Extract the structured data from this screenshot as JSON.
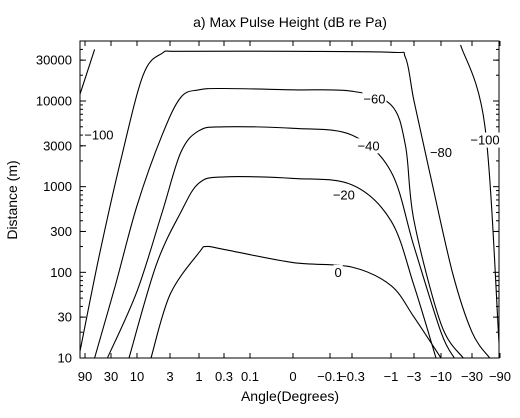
{
  "chart_data": {
    "type": "contour",
    "title": "a) Max Pulse Height (dB re Pa)",
    "xlabel": "Angle(Degrees)",
    "ylabel": "Distance (m)",
    "x_ticks": [
      "90",
      "30",
      "10",
      "3",
      "1",
      "0.3",
      "0.1",
      "0",
      "−0.1",
      "−0.3",
      "−1",
      "−3",
      "−10",
      "−30",
      "−90"
    ],
    "y_scale": "log",
    "ylim": [
      10,
      45000
    ],
    "y_ticks": [
      10,
      30,
      100,
      300,
      1000,
      3000,
      10000,
      30000
    ],
    "y_tick_labels": [
      "10",
      "30",
      "100",
      "300",
      "1000",
      "3000",
      "10000",
      "30000"
    ],
    "contours": [
      {
        "level": 0,
        "label": "0",
        "label_point": [
          -0.15,
          100
        ],
        "points": [
          [
            6,
            10
          ],
          [
            3,
            55
          ],
          [
            1,
            170
          ],
          [
            0.7,
            200
          ],
          [
            0.3,
            185
          ],
          [
            0,
            130
          ],
          [
            -0.3,
            115
          ],
          [
            -1,
            70
          ],
          [
            -3,
            30
          ],
          [
            -10,
            10
          ]
        ]
      },
      {
        "level": -20,
        "label": "−20",
        "label_point": [
          -0.2,
          800
        ],
        "points": [
          [
            14,
            10
          ],
          [
            5,
            120
          ],
          [
            2,
            500
          ],
          [
            1,
            1100
          ],
          [
            0.3,
            1300
          ],
          [
            0,
            1250
          ],
          [
            -0.3,
            1050
          ],
          [
            -1,
            400
          ],
          [
            -3,
            70
          ],
          [
            -8,
            10
          ]
        ]
      },
      {
        "level": -40,
        "label": "−40",
        "label_point": [
          -0.5,
          3000
        ],
        "points": [
          [
            35,
            10
          ],
          [
            10,
            60
          ],
          [
            4,
            500
          ],
          [
            2,
            2500
          ],
          [
            1,
            4500
          ],
          [
            0.3,
            5000
          ],
          [
            0,
            4800
          ],
          [
            -0.3,
            4000
          ],
          [
            -1,
            1500
          ],
          [
            -3,
            200
          ],
          [
            -10,
            20
          ],
          [
            -16,
            10
          ]
        ]
      },
      {
        "level": -60,
        "label": "−60",
        "label_point": [
          -0.6,
          10500
        ],
        "points": [
          [
            60,
            10
          ],
          [
            25,
            70
          ],
          [
            10,
            600
          ],
          [
            4,
            4000
          ],
          [
            2,
            11000
          ],
          [
            1,
            13500
          ],
          [
            0.3,
            14000
          ],
          [
            0,
            13500
          ],
          [
            -0.3,
            13000
          ],
          [
            -1,
            9000
          ],
          [
            -2,
            3000
          ],
          [
            -3,
            400
          ],
          [
            -10,
            25
          ],
          [
            -22,
            10
          ]
        ]
      },
      {
        "level": -80,
        "label": "−80",
        "label_point": [
          -10,
          2500
        ],
        "points": [
          [
            100,
            12
          ],
          [
            50,
            150
          ],
          [
            20,
            2000
          ],
          [
            8,
            20000
          ],
          [
            4,
            36000
          ],
          [
            2,
            38000
          ],
          [
            0,
            38000
          ],
          [
            -1,
            37000
          ],
          [
            -2,
            32000
          ],
          [
            -3,
            10000
          ],
          [
            -6,
            1500
          ],
          [
            -15,
            100
          ],
          [
            -30,
            20
          ],
          [
            -60,
            10
          ]
        ]
      },
      {
        "level": -100,
        "label": "−100",
        "label_point": [
          50,
          4000
        ],
        "points": [
          [
            100,
            12000
          ],
          [
            60,
            40000
          ]
        ]
      },
      {
        "level": -100,
        "label": "−100",
        "label_point": [
          -50,
          3500
        ],
        "points": [
          [
            -20,
            45000
          ],
          [
            -50,
            5000
          ],
          [
            -90,
            15
          ]
        ]
      }
    ]
  }
}
